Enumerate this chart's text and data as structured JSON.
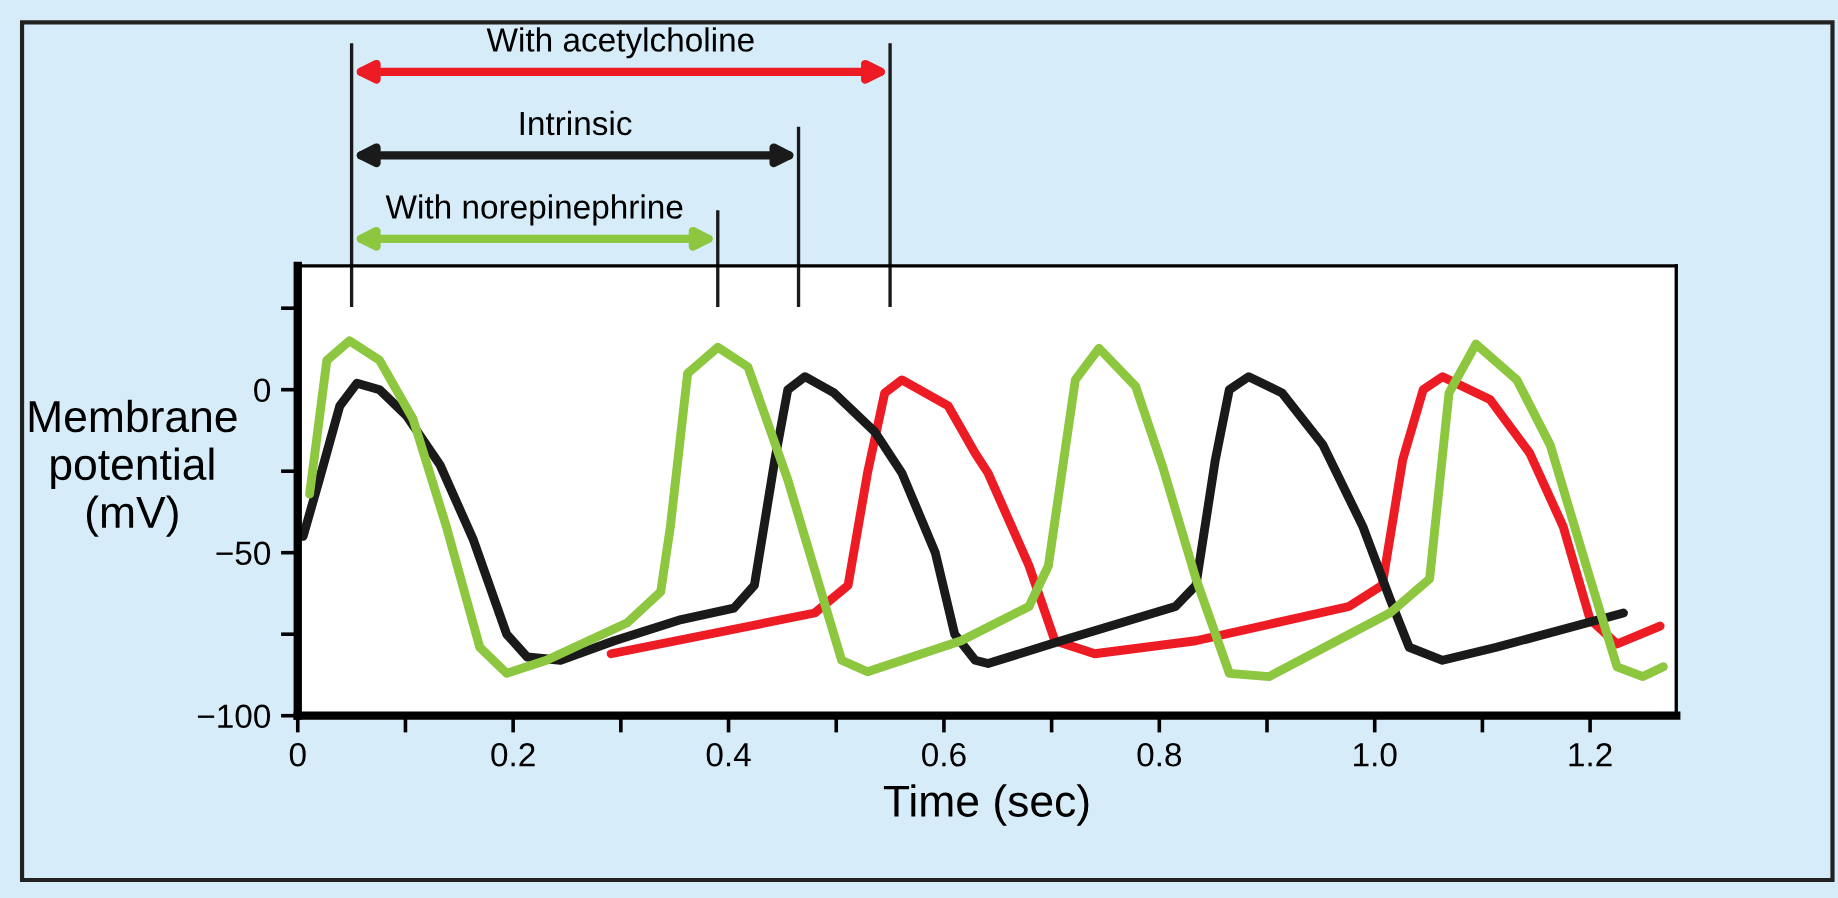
{
  "chart_data": {
    "type": "line",
    "xlabel": "Time (sec)",
    "ylabel": "Membrane\npotential\n(mV)",
    "xlim": [
      0,
      1.28
    ],
    "ylim": [
      -100,
      38
    ],
    "xticks": [
      0,
      {
        "value": 0.1,
        "label": null
      },
      0.2,
      {
        "value": 0.3,
        "label": null
      },
      0.4,
      {
        "value": 0.5,
        "label": null
      },
      0.6,
      {
        "value": 0.7,
        "label": null
      },
      0.8,
      {
        "value": 0.9,
        "label": null
      },
      {
        "value": 1.0,
        "label": "1.0"
      },
      {
        "value": 1.1,
        "label": null
      },
      1.2
    ],
    "yticks": [
      {
        "value": -100,
        "label": "−100"
      },
      {
        "value": -75,
        "label": null
      },
      {
        "value": -50,
        "label": "−50"
      },
      {
        "value": -25,
        "label": null
      },
      0,
      {
        "value": 25,
        "label": null
      }
    ],
    "grid": false,
    "legend": false,
    "marker": "none",
    "line_style": "solid",
    "series": [
      {
        "color": "#ed1c24",
        "x": [
          0.291,
          0.48,
          0.511,
          0.529,
          0.545,
          0.561,
          0.604,
          0.629,
          0.641,
          0.679,
          0.703,
          0.74,
          0.834,
          0.976,
          1.007,
          1.026,
          1.045,
          1.063,
          1.107,
          1.144,
          1.175,
          1.2,
          1.225,
          1.265
        ],
        "values": [
          -81,
          -68.5,
          -60,
          -25.6,
          -1,
          3,
          -5,
          -19.5,
          -25.6,
          -54,
          -77,
          -81,
          -77,
          -66.5,
          -60,
          -21.5,
          0,
          4,
          -3,
          -19.5,
          -42,
          -70.5,
          -78,
          -72.5
        ]
      },
      {
        "color": "#1a1a1a",
        "x": [
          0.005,
          0.02,
          0.039,
          0.055,
          0.076,
          0.101,
          0.132,
          0.163,
          0.194,
          0.213,
          0.244,
          0.294,
          0.356,
          0.405,
          0.424,
          0.443,
          0.455,
          0.471,
          0.498,
          0.536,
          0.561,
          0.592,
          0.61,
          0.629,
          0.641,
          0.709,
          0.815,
          0.834,
          0.852,
          0.865,
          0.883,
          0.914,
          0.952,
          0.989,
          1.014,
          1.032,
          1.063,
          1.113,
          1.231
        ],
        "values": [
          -45,
          -27.6,
          -5,
          2,
          0,
          -8,
          -23,
          -46,
          -75,
          -82,
          -83,
          -77,
          -70.5,
          -67,
          -60,
          -21.5,
          0,
          4,
          -1,
          -13,
          -25.6,
          -50,
          -75,
          -83,
          -84,
          -77,
          -66.5,
          -60,
          -21.5,
          0,
          4,
          -1,
          -17,
          -42,
          -64,
          -79,
          -83,
          -79,
          -68.5
        ]
      },
      {
        "color": "#8dc63f",
        "x": [
          0.011,
          0.027,
          0.048,
          0.076,
          0.107,
          0.138,
          0.169,
          0.194,
          0.231,
          0.306,
          0.337,
          0.346,
          0.362,
          0.39,
          0.418,
          0.455,
          0.486,
          0.505,
          0.529,
          0.616,
          0.679,
          0.697,
          0.722,
          0.744,
          0.778,
          0.803,
          0.834,
          0.865,
          0.902,
          1.014,
          1.051,
          1.069,
          1.094,
          1.132,
          1.163,
          1.2,
          1.225,
          1.249,
          1.268
        ],
        "values": [
          -32,
          9,
          15,
          9,
          -9,
          -42,
          -79,
          -87,
          -83,
          -71.5,
          -62,
          -42,
          5,
          13,
          7,
          -27.6,
          -62,
          -83,
          -86.5,
          -77,
          -66.5,
          -54,
          3,
          12.7,
          1,
          -23.5,
          -58,
          -87,
          -88,
          -68.5,
          -58,
          -1,
          14,
          3,
          -17,
          -58,
          -85,
          -88,
          -85
        ]
      }
    ],
    "ref_lines": [
      {
        "axis": "x",
        "value": 0.05,
        "color": "#1a1a1a"
      },
      {
        "axis": "x",
        "value": 0.55,
        "color": "#1a1a1a"
      },
      {
        "axis": "x",
        "value": 0.465,
        "color": "#1a1a1a"
      },
      {
        "axis": "x",
        "value": 0.39,
        "color": "#1a1a1a"
      }
    ],
    "annotations": [
      "With acetylcholine",
      "Intrinsic",
      "With norepinephrine"
    ]
  }
}
